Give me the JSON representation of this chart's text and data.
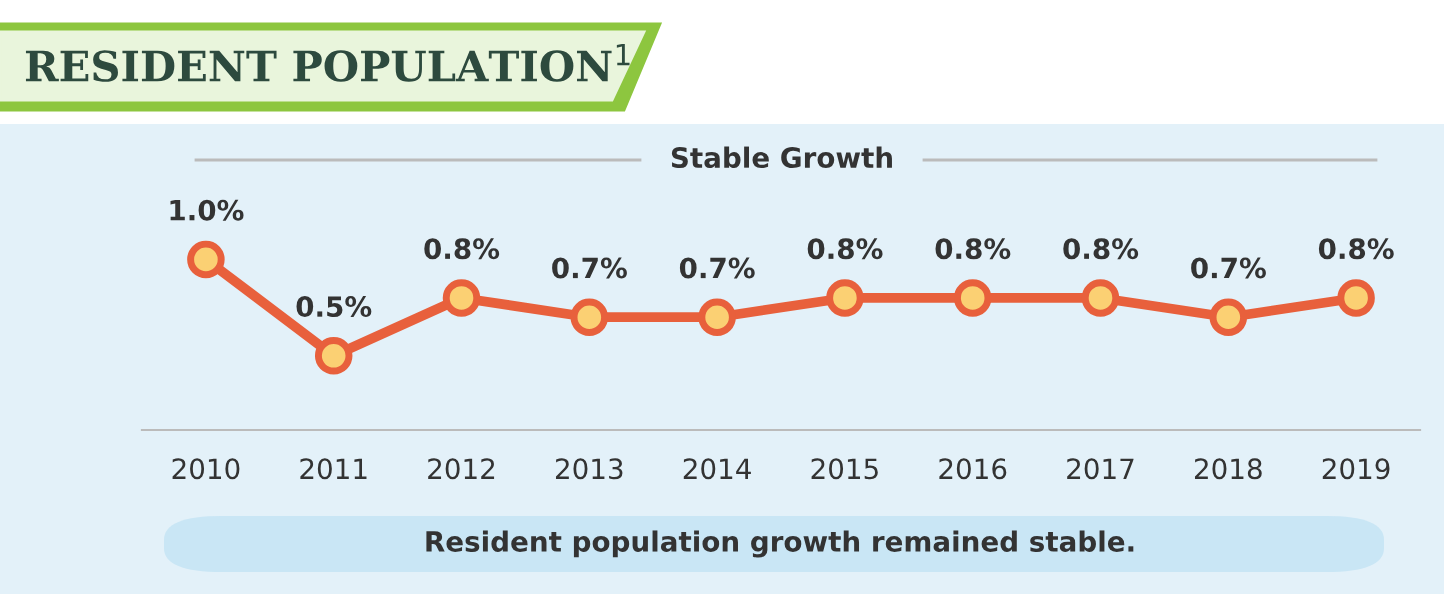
{
  "chart_data": {
    "type": "line",
    "title": "RESIDENT POPULATION$^{1}$",
    "subtitle": "Stable Growth",
    "categories": [
      "2010",
      "2011",
      "2012",
      "2013",
      "2014",
      "2015",
      "2016",
      "2017",
      "2018",
      "2019"
    ],
    "series": [
      {
        "color": "#e8603c",
        "values": [
          1.0,
          0.5,
          0.8,
          0.7,
          0.7,
          0.8,
          0.8,
          0.8,
          0.7,
          0.8
        ],
        "value_labels": [
          "1.0%",
          "0.5%",
          "0.8%",
          "0.7%",
          "0.7%",
          "0.8%",
          "0.8%",
          "0.8%",
          "0.7%",
          "0.8%"
        ]
      }
    ],
    "marker": "circle",
    "annotations": [
      "Resident population growth remained stable."
    ]
  }
}
